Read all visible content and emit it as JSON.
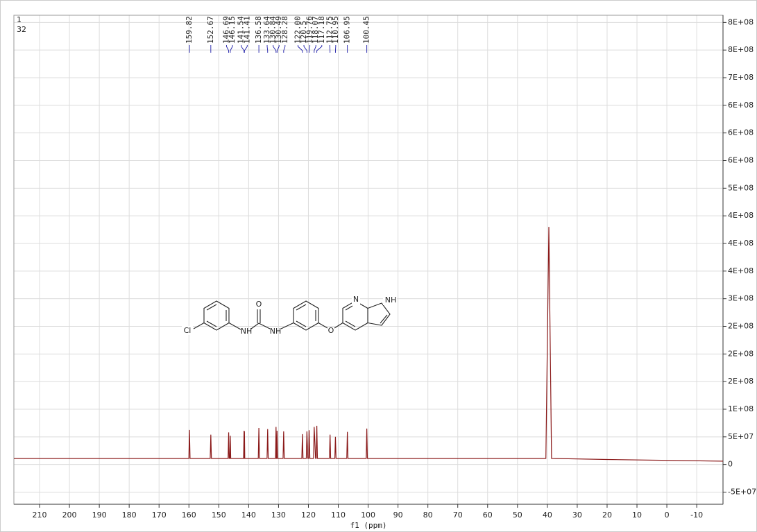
{
  "chart_data": {
    "type": "line",
    "corner_text": [
      "1",
      "32"
    ],
    "xlabel": "f1 (ppm)",
    "structure_labels": [
      "Cl",
      "NH",
      "O",
      "NH",
      "O",
      "N",
      "NH"
    ],
    "xlim": [
      218.6,
      -18.8
    ],
    "xticks": [
      210,
      200,
      190,
      180,
      170,
      160,
      150,
      140,
      130,
      120,
      110,
      100,
      90,
      80,
      70,
      60,
      50,
      40,
      30,
      20,
      10,
      0,
      -10
    ],
    "ylim": [
      -72000000,
      813000000
    ],
    "yticks": [
      {
        "value": -50000000,
        "label": "-5E+07"
      },
      0,
      {
        "value": 50000000,
        "label": "5E+07"
      },
      {
        "value": 100000000,
        "label": "1E+08"
      },
      {
        "value": 150000000,
        "label": "2E+08"
      },
      {
        "value": 200000000,
        "label": "2E+08"
      },
      {
        "value": 250000000,
        "label": "2E+08"
      },
      {
        "value": 300000000,
        "label": "3E+08"
      },
      {
        "value": 350000000,
        "label": "4E+08"
      },
      {
        "value": 400000000,
        "label": "4E+08"
      },
      {
        "value": 450000000,
        "label": "4E+08"
      },
      {
        "value": 500000000,
        "label": "5E+08"
      },
      {
        "value": 550000000,
        "label": "6E+08"
      },
      {
        "value": 600000000,
        "label": "6E+08"
      },
      {
        "value": 650000000,
        "label": "6E+08"
      },
      {
        "value": 700000000,
        "label": "7E+08"
      },
      {
        "value": 750000000,
        "label": "8E+08"
      },
      {
        "value": 800000000,
        "label": "8E+08"
      }
    ],
    "grid": true,
    "peak_label_color": "#1c1ca8",
    "peak_labels": [
      159.82,
      152.67,
      146.69,
      146.15,
      141.54,
      141.41,
      136.58,
      133.64,
      130.84,
      130.49,
      128.28,
      {
        "value": 122,
        "label": "122.00"
      },
      120.5,
      119.76,
      118.07,
      117.18,
      112.75,
      110.95,
      106.95,
      100.45
    ],
    "series": [
      {
        "name": "spectrum",
        "color": "#8b1a1a",
        "x": [
          218.6,
          160.02,
          159.82,
          159.62,
          152.87,
          152.67,
          152.47,
          146.89,
          146.69,
          146.54,
          146.3,
          146.15,
          146.0,
          141.7,
          141.54,
          141.47,
          141.45,
          141.41,
          141.3,
          136.78,
          136.58,
          136.38,
          133.84,
          133.64,
          133.44,
          131.0,
          130.84,
          130.7,
          130.6,
          130.49,
          130.3,
          128.48,
          128.28,
          128.08,
          122.2,
          122.0,
          121.8,
          120.7,
          120.5,
          120.2,
          119.9,
          119.76,
          119.5,
          118.27,
          118.07,
          117.6,
          117.4,
          117.18,
          116.98,
          112.95,
          112.75,
          112.55,
          111.15,
          110.95,
          110.75,
          107.15,
          106.95,
          106.75,
          100.65,
          100.45,
          100.25,
          40.5,
          39.5,
          38.6,
          20,
          -18.8
        ],
        "values": [
          11000000,
          11000000,
          62500000,
          11000000,
          11000000,
          54000000,
          11000000,
          11000000,
          58000000,
          11000000,
          11000000,
          52000000,
          11000000,
          11000000,
          61000000,
          11000000,
          11000000,
          60000000,
          11000000,
          11000000,
          66000000,
          11000000,
          11000000,
          64000000,
          11000000,
          11000000,
          68000000,
          11000000,
          11000000,
          61000000,
          11000000,
          11000000,
          60000000,
          11000000,
          11000000,
          55000000,
          11000000,
          11000000,
          60000000,
          11000000,
          11000000,
          62000000,
          11000000,
          11000000,
          68000000,
          11000000,
          11000000,
          70000000,
          11000000,
          11000000,
          54000000,
          11000000,
          11000000,
          50000000,
          11000000,
          11000000,
          59000000,
          11000000,
          11000000,
          65000000,
          11000000,
          11000000,
          430000000,
          11000000,
          9000000,
          6000000
        ]
      }
    ]
  }
}
